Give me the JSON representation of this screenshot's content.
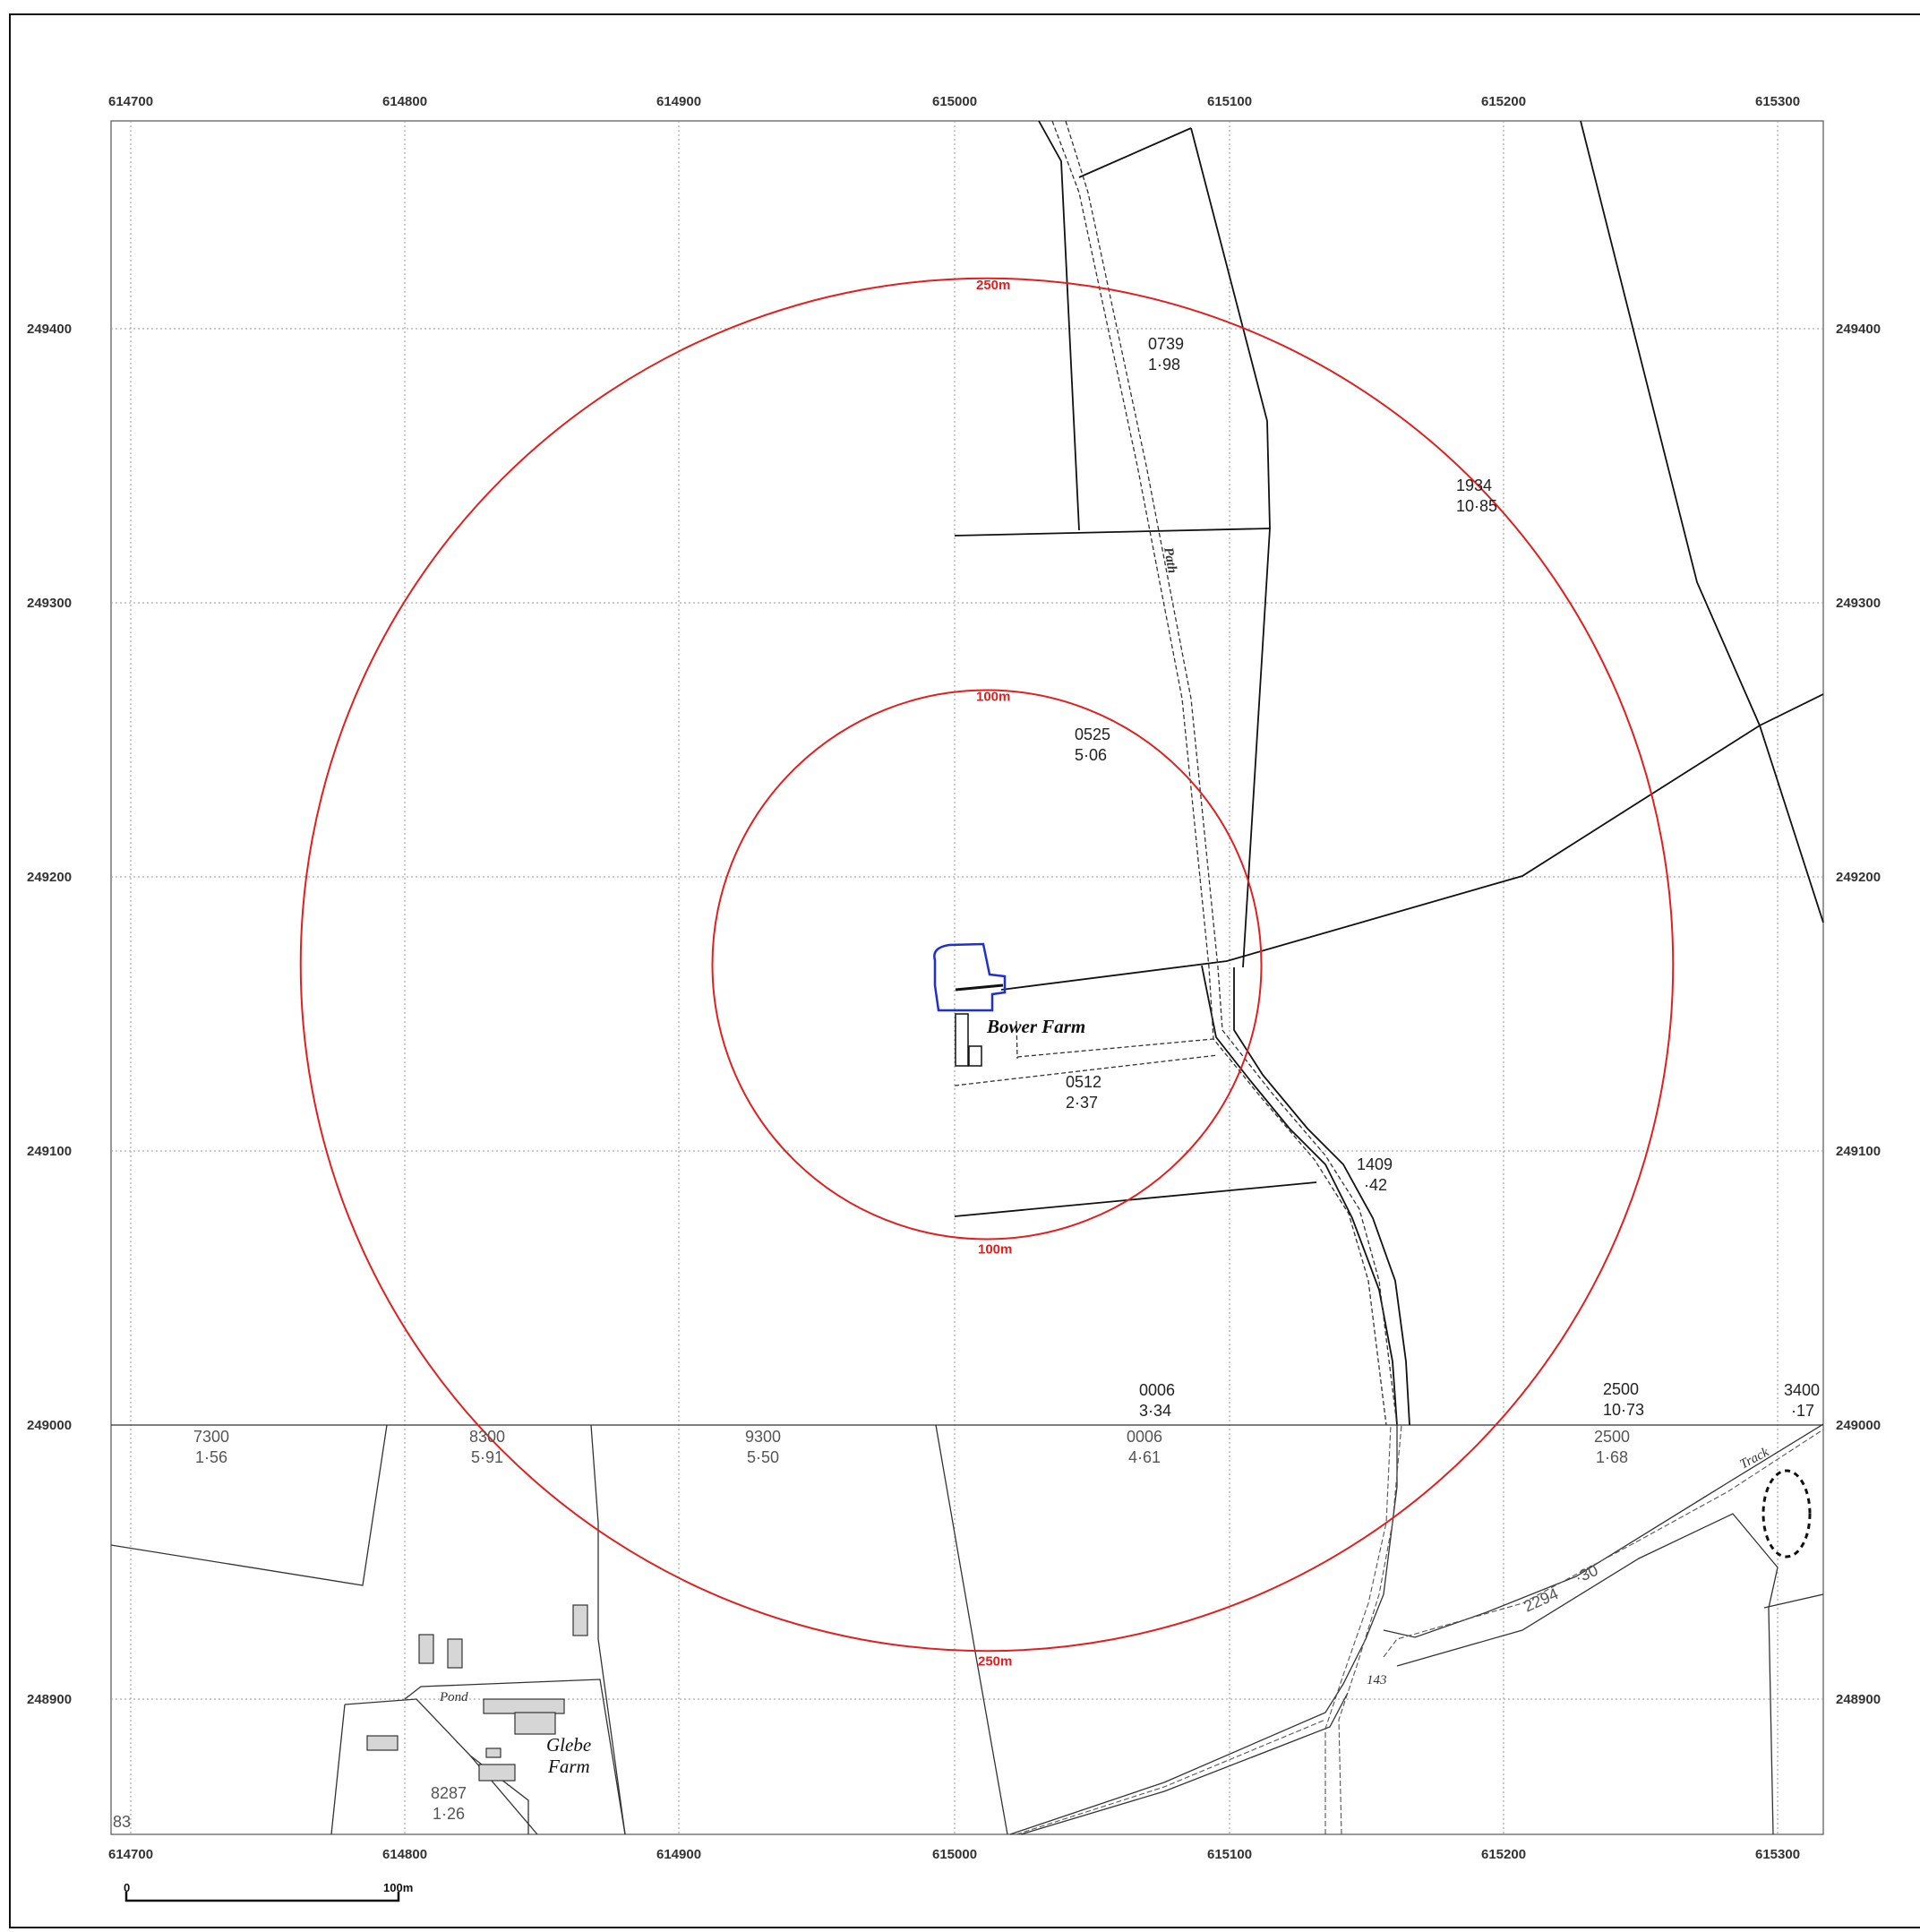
{
  "grid": {
    "eastings": [
      "614700",
      "614800",
      "614900",
      "615000",
      "615100",
      "615200",
      "615300"
    ],
    "northings": [
      "249400",
      "249300",
      "249200",
      "249100",
      "249000",
      "248900"
    ]
  },
  "rings": [
    {
      "radius_m": 250,
      "label_top": "250m",
      "label_bottom": "250m",
      "color": "#e02020"
    },
    {
      "radius_m": 100,
      "label_top": "100m",
      "label_bottom": "100m",
      "color": "#e02020"
    }
  ],
  "site_outline_color": "#1f2fd0",
  "place_names": {
    "bower_farm": "Bower Farm",
    "glebe_farm_line1": "Glebe",
    "glebe_farm_line2": "Farm",
    "pond": "Pond",
    "path": "Path",
    "track": "Track"
  },
  "parcels_upper": [
    {
      "id": "0739",
      "area": "1·98"
    },
    {
      "id": "1934",
      "area": "10·85"
    },
    {
      "id": "0525",
      "area": "5·06"
    },
    {
      "id": "0512",
      "area": "2·37"
    },
    {
      "id": "1409",
      "area": "·42"
    },
    {
      "id": "0006",
      "area": "3·34"
    },
    {
      "id": "2500",
      "area": "10·73"
    },
    {
      "id": "3400",
      "area": "·17"
    }
  ],
  "parcels_lower": [
    {
      "id": "7300",
      "area": "1·56"
    },
    {
      "id": "8300",
      "area": "5·91"
    },
    {
      "id": "9300",
      "area": "5·50"
    },
    {
      "id": "0006",
      "area": "4·61"
    },
    {
      "id": "2500",
      "area": "1·68"
    },
    {
      "id": "8287",
      "area": "1·26"
    }
  ],
  "misc_labels": {
    "track_parcel": "2294",
    "track_area": "·30",
    "spot_143": "143",
    "corner_83": "83"
  },
  "scale_bar": {
    "start": "0",
    "end": "100m"
  }
}
